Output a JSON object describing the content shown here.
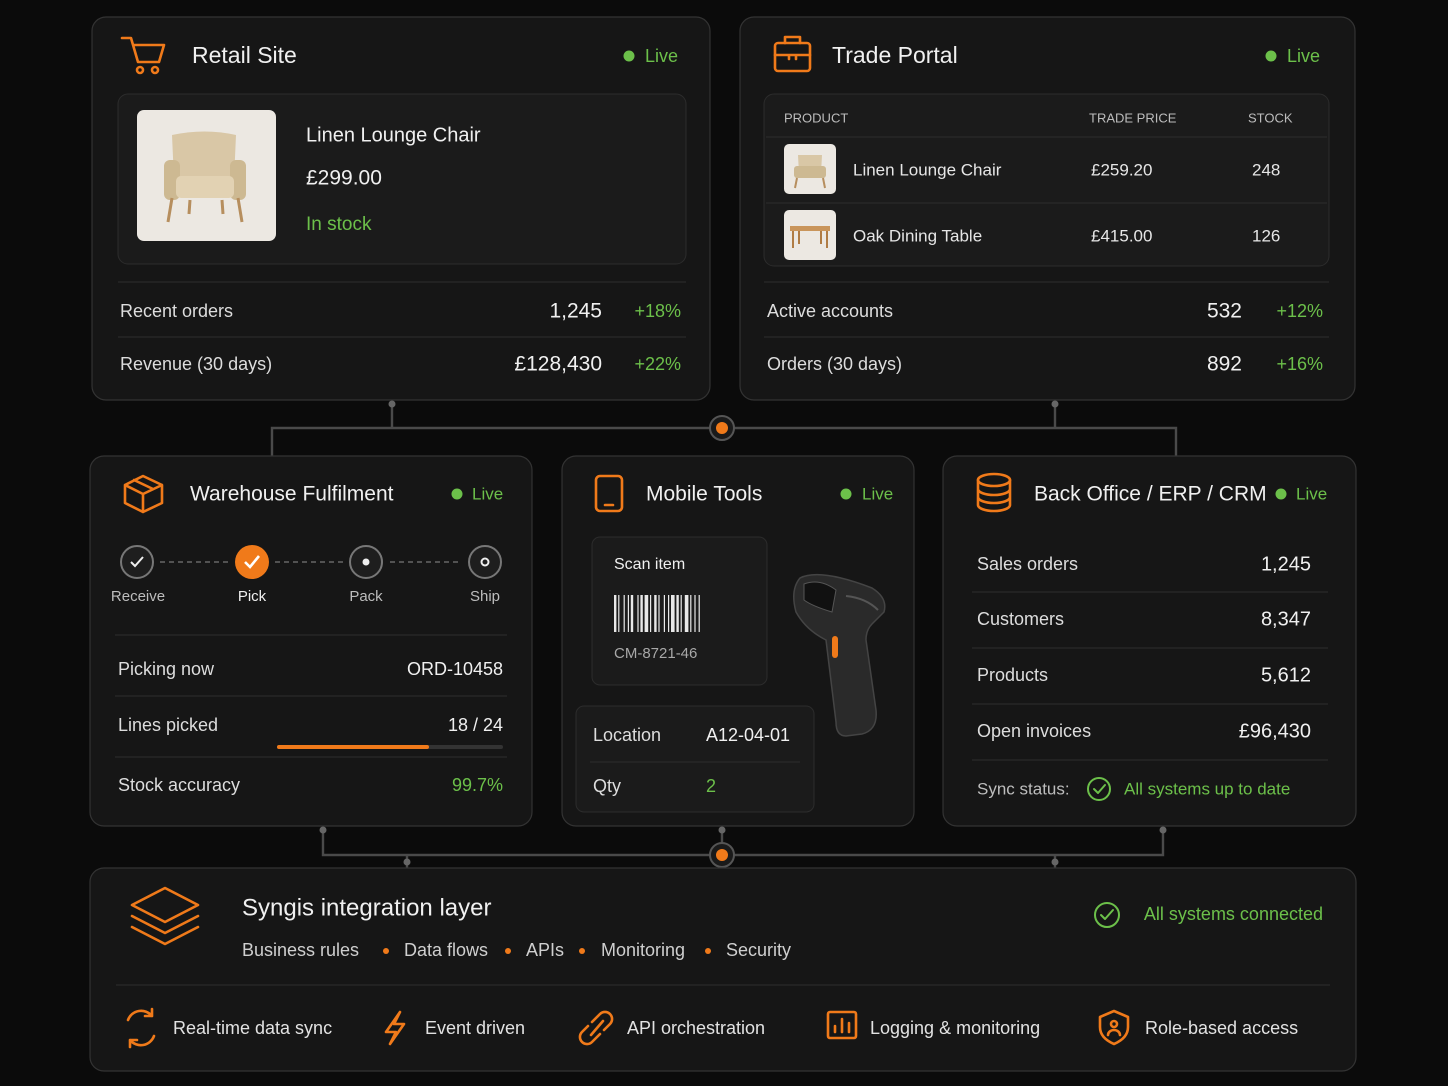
{
  "retail": {
    "title": "Retail Site",
    "status": "Live",
    "product": {
      "name": "Linen Lounge Chair",
      "price": "£299.00",
      "stock": "In stock"
    },
    "metrics": [
      {
        "label": "Recent orders",
        "value": "1,245",
        "change": "+18%"
      },
      {
        "label": "Revenue (30 days)",
        "value": "£128,430",
        "change": "+22%"
      }
    ]
  },
  "trade": {
    "title": "Trade Portal",
    "status": "Live",
    "table": {
      "headers": [
        "PRODUCT",
        "TRADE PRICE",
        "STOCK"
      ],
      "rows": [
        [
          "Linen Lounge Chair",
          "£259.20",
          "248"
        ],
        [
          "Oak Dining Table",
          "£415.00",
          "126"
        ]
      ]
    },
    "metrics": [
      {
        "label": "Active accounts",
        "value": "532",
        "change": "+12%"
      },
      {
        "label": "Orders (30 days)",
        "value": "892",
        "change": "+16%"
      }
    ]
  },
  "warehouse": {
    "title": "Warehouse Fulfilment",
    "status": "Live",
    "steps": [
      "Receive",
      "Pick",
      "Pack",
      "Ship"
    ],
    "rows": [
      {
        "label": "Picking now",
        "value": "ORD-10458"
      },
      {
        "label": "Lines picked",
        "value": "18 / 24"
      },
      {
        "label": "Stock accuracy",
        "value": "99.7%"
      }
    ]
  },
  "mobile": {
    "title": "Mobile Tools",
    "status": "Live",
    "scan": {
      "label": "Scan item",
      "code": "CM-8721-46"
    },
    "fields": [
      {
        "label": "Location",
        "value": "A12-04-01"
      },
      {
        "label": "Qty",
        "value": "2"
      }
    ]
  },
  "backoffice": {
    "title": "Back Office / ERP / CRM",
    "status": "Live",
    "rows": [
      {
        "label": "Sales orders",
        "value": "1,245"
      },
      {
        "label": "Customers",
        "value": "8,347"
      },
      {
        "label": "Products",
        "value": "5,612"
      },
      {
        "label": "Open invoices",
        "value": "£96,430"
      }
    ],
    "sync": {
      "label": "Sync status:",
      "value": "All systems up to date"
    }
  },
  "integration": {
    "title": "Syngis integration layer",
    "status": "All systems connected",
    "tags": [
      "Business rules",
      "Data flows",
      "APIs",
      "Monitoring",
      "Security"
    ],
    "features": [
      "Real-time data sync",
      "Event driven",
      "API orchestration",
      "Logging & monitoring",
      "Role-based access"
    ]
  }
}
